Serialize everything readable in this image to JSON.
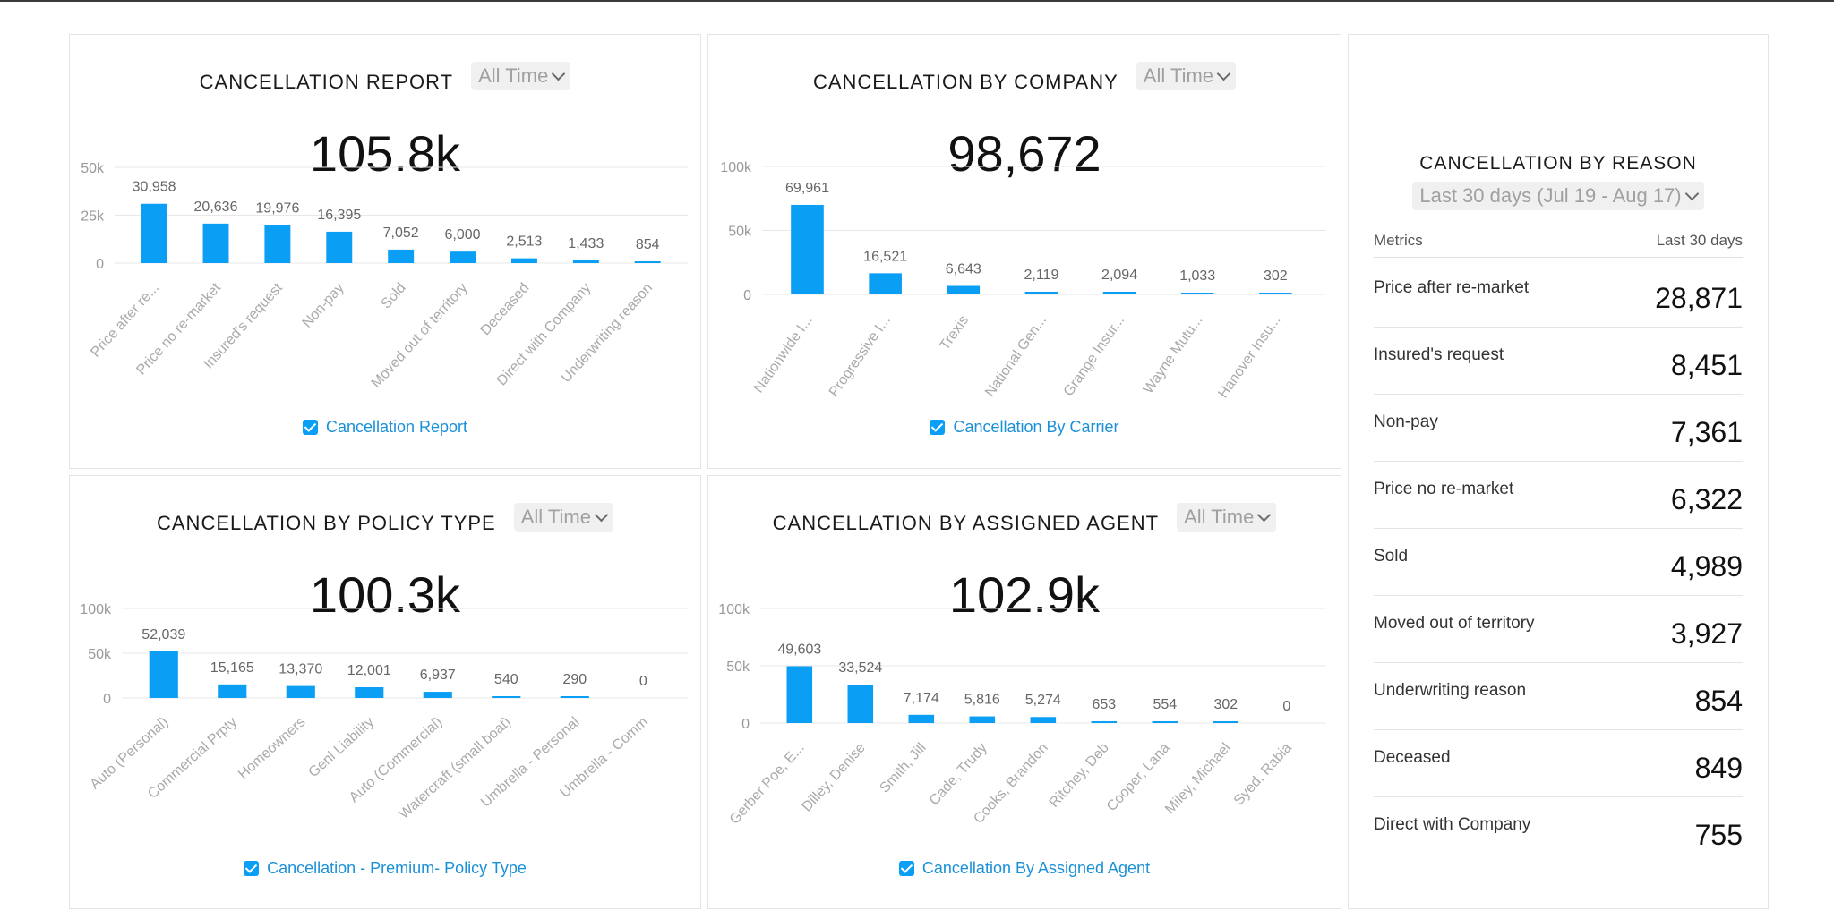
{
  "panels": [
    {
      "title": "CANCELLATION REPORT",
      "dropdown": "All Time",
      "kpi": "105.8k",
      "legend": "Cancellation Report",
      "chart_data": {
        "type": "bar",
        "ylim": [
          0,
          50000
        ],
        "yticks": [
          "50k",
          "25k",
          "0"
        ],
        "yticks_values": [
          50000,
          25000,
          0
        ],
        "categories": [
          "Price after re...",
          "Price no re-market",
          "Insured's request",
          "Non-pay",
          "Sold",
          "Moved out of territory",
          "Deceased",
          "Direct with Company",
          "Underwriting reason"
        ],
        "values": [
          30958,
          20636,
          19976,
          16395,
          7052,
          6000,
          2513,
          1433,
          854
        ],
        "labels": [
          "30,958",
          "20,636",
          "19,976",
          "16,395",
          "7,052",
          "6,000",
          "2,513",
          "1,433",
          "854"
        ],
        "series": [
          {
            "name": "Cancellation Report"
          }
        ]
      }
    },
    {
      "title": "CANCELLATION BY COMPANY",
      "dropdown": "All Time",
      "kpi": "98,672",
      "legend": "Cancellation By Carrier",
      "chart_data": {
        "type": "bar",
        "ylim": [
          0,
          100000
        ],
        "yticks": [
          "100k",
          "50k",
          "0"
        ],
        "yticks_values": [
          100000,
          50000,
          0
        ],
        "categories": [
          "Nationwide I...",
          "Progressive I...",
          "Trexis",
          "National Gen...",
          "Grange Insur...",
          "Wayne Mutu...",
          "Hanover Insu..."
        ],
        "values": [
          69961,
          16521,
          6643,
          2119,
          2094,
          1033,
          302
        ],
        "labels": [
          "69,961",
          "16,521",
          "6,643",
          "2,119",
          "2,094",
          "1,033",
          "302"
        ],
        "series": [
          {
            "name": "Cancellation By Carrier"
          }
        ]
      }
    },
    {
      "title": "CANCELLATION BY POLICY TYPE",
      "dropdown": "All Time",
      "kpi": "100.3k",
      "legend": "Cancellation - Premium- Policy Type",
      "chart_data": {
        "type": "bar",
        "ylim": [
          0,
          100000
        ],
        "yticks": [
          "100k",
          "50k",
          "0"
        ],
        "yticks_values": [
          100000,
          50000,
          0
        ],
        "categories": [
          "Auto (Personal)",
          "Commercial Prpty",
          "Homeowners",
          "Genl Liability",
          "Auto (Commercial)",
          "Watercraft (small boat)",
          "Umbrella - Personal",
          "Umbrella - Comm"
        ],
        "values": [
          52039,
          15165,
          13370,
          12001,
          6937,
          540,
          290,
          0
        ],
        "labels": [
          "52,039",
          "15,165",
          "13,370",
          "12,001",
          "6,937",
          "540",
          "290",
          "0"
        ],
        "series": [
          {
            "name": "Cancellation - Premium- Policy Type"
          }
        ]
      }
    },
    {
      "title": "CANCELLATION BY ASSIGNED AGENT",
      "dropdown": "All Time",
      "kpi": "102.9k",
      "legend": "Cancellation By Assigned Agent",
      "chart_data": {
        "type": "bar",
        "ylim": [
          0,
          100000
        ],
        "yticks": [
          "100k",
          "50k",
          "0"
        ],
        "yticks_values": [
          100000,
          50000,
          0
        ],
        "categories": [
          "Gerber Poe, E...",
          "Dilley, Denise",
          "Smith, Jill",
          "Cade, Trudy",
          "Cooks, Brandon",
          "Ritchey, Deb",
          "Cooper, Lana",
          "Miley, Michael",
          "Syed, Rabia"
        ],
        "values": [
          49603,
          33524,
          7174,
          5816,
          5274,
          653,
          554,
          302,
          0
        ],
        "labels": [
          "49,603",
          "33,524",
          "7,174",
          "5,816",
          "5,274",
          "653",
          "554",
          "302",
          "0"
        ],
        "series": [
          {
            "name": "Cancellation By Assigned Agent"
          }
        ]
      }
    }
  ],
  "reason": {
    "title": "CANCELLATION BY REASON",
    "dropdown": "Last 30 days (Jul 19 - Aug 17)",
    "col_metrics": "Metrics",
    "col_period": "Last 30 days",
    "rows": [
      {
        "label": "Price after re-market",
        "value": "28,871"
      },
      {
        "label": "Insured's request",
        "value": "8,451"
      },
      {
        "label": "Non-pay",
        "value": "7,361"
      },
      {
        "label": "Price no re-market",
        "value": "6,322"
      },
      {
        "label": "Sold",
        "value": "4,989"
      },
      {
        "label": "Moved out of territory",
        "value": "3,927"
      },
      {
        "label": "Underwriting reason",
        "value": "854"
      },
      {
        "label": "Deceased",
        "value": "849"
      },
      {
        "label": "Direct with Company",
        "value": "755"
      }
    ]
  },
  "colors": {
    "bar": "#0a9ef5",
    "legend_text": "#1a90d8",
    "grid": "#e8e8e8"
  }
}
